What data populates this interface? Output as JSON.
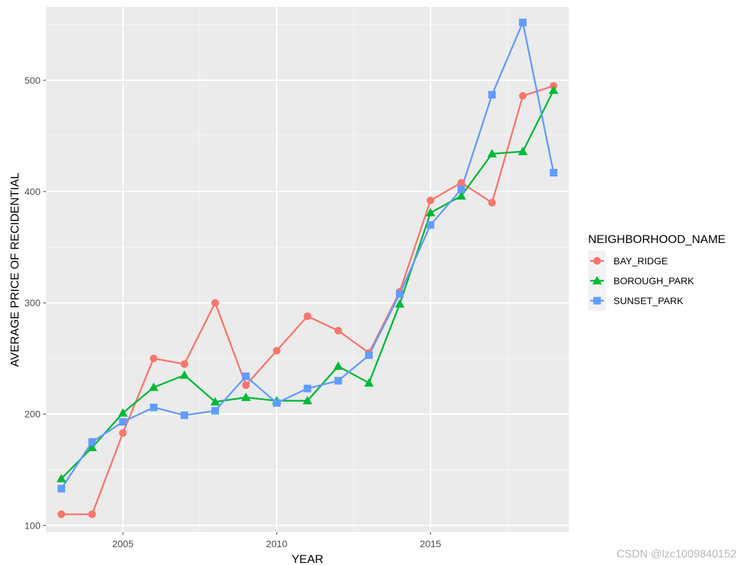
{
  "chart_data": {
    "type": "line",
    "title": "",
    "xlabel": "YEAR",
    "ylabel": "AVERAGE PRICE OF RECIDENTIAL",
    "xlim": [
      2002.5,
      2019.5
    ],
    "ylim": [
      94,
      566
    ],
    "x_ticks": [
      2005,
      2010,
      2015
    ],
    "y_ticks": [
      100,
      200,
      300,
      400,
      500
    ],
    "grid": true,
    "legend": {
      "title": "NEIGHBORHOOD_NAME",
      "position": "right"
    },
    "x": [
      2003,
      2004,
      2005,
      2006,
      2007,
      2008,
      2009,
      2010,
      2011,
      2012,
      2013,
      2014,
      2015,
      2016,
      2017,
      2018,
      2019
    ],
    "series": [
      {
        "name": "BAY_RIDGE",
        "color": "#F8766D",
        "marker": "circle",
        "values": [
          110,
          110,
          183,
          250,
          245,
          300,
          226,
          257,
          288,
          275,
          255,
          310,
          392,
          408,
          390,
          486,
          495
        ]
      },
      {
        "name": "BOROUGH_PARK",
        "color": "#00BA38",
        "marker": "triangle",
        "values": [
          142,
          170,
          201,
          224,
          235,
          211,
          215,
          212,
          212,
          243,
          228,
          299,
          381,
          396,
          434,
          436,
          491
        ]
      },
      {
        "name": "SUNSET_PARK",
        "color": "#619CFF",
        "marker": "square",
        "values": [
          133,
          175,
          193,
          206,
          199,
          203,
          234,
          210,
          223,
          230,
          253,
          308,
          370,
          402,
          487,
          552,
          417
        ]
      }
    ]
  },
  "watermark": "CSDN @lzc1009840152"
}
